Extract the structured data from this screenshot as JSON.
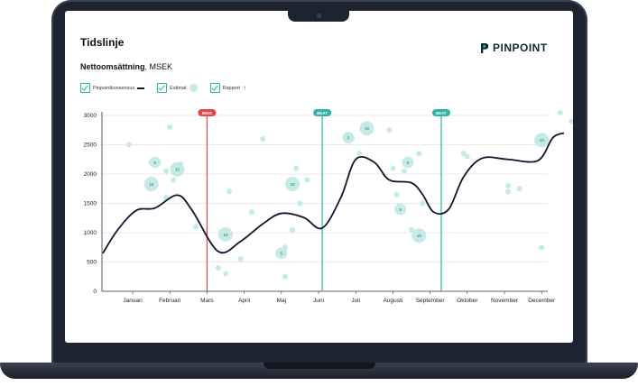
{
  "header": {
    "title": "Tidslinje",
    "subtitle": "Nettoomsättning",
    "subtitle_unit": ", MSEK",
    "brand": "PINPOINT"
  },
  "legend": {
    "consensus": "Pinpointkonsensus",
    "estimate": "Estimat",
    "report": "Rapport"
  },
  "colors": {
    "line": "#12132e",
    "beat": "#2fb3a6",
    "miss": "#e24a4a",
    "bubble": "#c6ebe6",
    "bubble_text": "#1b6f66"
  },
  "chart_data": {
    "type": "line",
    "title": "Nettoomsättning",
    "ylabel": "MSEK",
    "ylim": [
      0,
      3000
    ],
    "yticks": [
      0,
      500,
      1000,
      1500,
      2000,
      2500,
      3000
    ],
    "categories": [
      "Januari",
      "Februari",
      "Mars",
      "April",
      "Maj",
      "Juni",
      "Juli",
      "Augusti",
      "September",
      "Oktober",
      "November",
      "December"
    ],
    "series": [
      {
        "name": "Pinpointkonsensus",
        "points": [
          [
            -0.8,
            650
          ],
          [
            -0.4,
            1050
          ],
          [
            0.1,
            1380
          ],
          [
            0.6,
            1420
          ],
          [
            1.2,
            1640
          ],
          [
            1.6,
            1380
          ],
          [
            2.3,
            680
          ],
          [
            2.9,
            850
          ],
          [
            3.5,
            1150
          ],
          [
            4.0,
            1330
          ],
          [
            4.6,
            1260
          ],
          [
            5.1,
            1080
          ],
          [
            5.6,
            1600
          ],
          [
            6.0,
            2250
          ],
          [
            6.5,
            2200
          ],
          [
            6.9,
            1900
          ],
          [
            7.5,
            1850
          ],
          [
            7.8,
            1650
          ],
          [
            8.1,
            1350
          ],
          [
            8.5,
            1400
          ],
          [
            8.9,
            1950
          ],
          [
            9.4,
            2270
          ],
          [
            10.1,
            2250
          ],
          [
            10.9,
            2230
          ],
          [
            11.3,
            2620
          ],
          [
            11.6,
            2700
          ]
        ]
      }
    ],
    "reports": [
      {
        "label": "MISS",
        "x": 2.0
      },
      {
        "label": "BEAT",
        "x": 5.1
      },
      {
        "label": "BEAT",
        "x": 8.3
      }
    ],
    "estimates": [
      {
        "x": -0.1,
        "y": 2500
      },
      {
        "x": 0.5,
        "y": 2200
      },
      {
        "x": 0.9,
        "y": 1600
      },
      {
        "x": 0.9,
        "y": 2050
      },
      {
        "x": 1.0,
        "y": 2800
      },
      {
        "x": 1.1,
        "y": 1900
      },
      {
        "x": 1.3,
        "y": 2170
      },
      {
        "x": 1.7,
        "y": 1100
      },
      {
        "x": 2.3,
        "y": 400
      },
      {
        "x": 2.5,
        "y": 300
      },
      {
        "x": 2.6,
        "y": 1700
      },
      {
        "x": 2.6,
        "y": 950
      },
      {
        "x": 2.9,
        "y": 550
      },
      {
        "x": 3.2,
        "y": 1350
      },
      {
        "x": 3.5,
        "y": 2600
      },
      {
        "x": 4.1,
        "y": 250
      },
      {
        "x": 4.1,
        "y": 750
      },
      {
        "x": 4.3,
        "y": 1050
      },
      {
        "x": 4.4,
        "y": 2100
      },
      {
        "x": 4.5,
        "y": 1500
      },
      {
        "x": 4.7,
        "y": 1900
      },
      {
        "x": 5.9,
        "y": 2600
      },
      {
        "x": 6.1,
        "y": 2350
      },
      {
        "x": 6.9,
        "y": 2750
      },
      {
        "x": 7.0,
        "y": 2100
      },
      {
        "x": 7.1,
        "y": 1650
      },
      {
        "x": 7.3,
        "y": 2050
      },
      {
        "x": 7.5,
        "y": 1050
      },
      {
        "x": 7.7,
        "y": 2350
      },
      {
        "x": 7.8,
        "y": 1500
      },
      {
        "x": 8.9,
        "y": 2350
      },
      {
        "x": 9.0,
        "y": 2300
      },
      {
        "x": 10.1,
        "y": 1700
      },
      {
        "x": 10.1,
        "y": 1800
      },
      {
        "x": 10.4,
        "y": 1750
      },
      {
        "x": 11.0,
        "y": 750
      },
      {
        "x": 11.5,
        "y": 3050
      },
      {
        "x": 11.8,
        "y": 2900
      }
    ],
    "estimate_clusters": [
      {
        "x": 0.5,
        "y": 1830,
        "count": 10
      },
      {
        "x": 0.6,
        "y": 2200,
        "count": 5
      },
      {
        "x": 1.2,
        "y": 2080,
        "count": 10
      },
      {
        "x": 2.5,
        "y": 970,
        "count": 10
      },
      {
        "x": 4.0,
        "y": 650,
        "count": 5
      },
      {
        "x": 4.3,
        "y": 1830,
        "count": 10
      },
      {
        "x": 5.8,
        "y": 2620,
        "count": 5
      },
      {
        "x": 6.3,
        "y": 2780,
        "count": 10
      },
      {
        "x": 7.4,
        "y": 2200,
        "count": 5
      },
      {
        "x": 7.2,
        "y": 1400,
        "count": 5
      },
      {
        "x": 7.7,
        "y": 950,
        "count": 10
      },
      {
        "x": 11.0,
        "y": 2580,
        "count": 10
      }
    ]
  }
}
